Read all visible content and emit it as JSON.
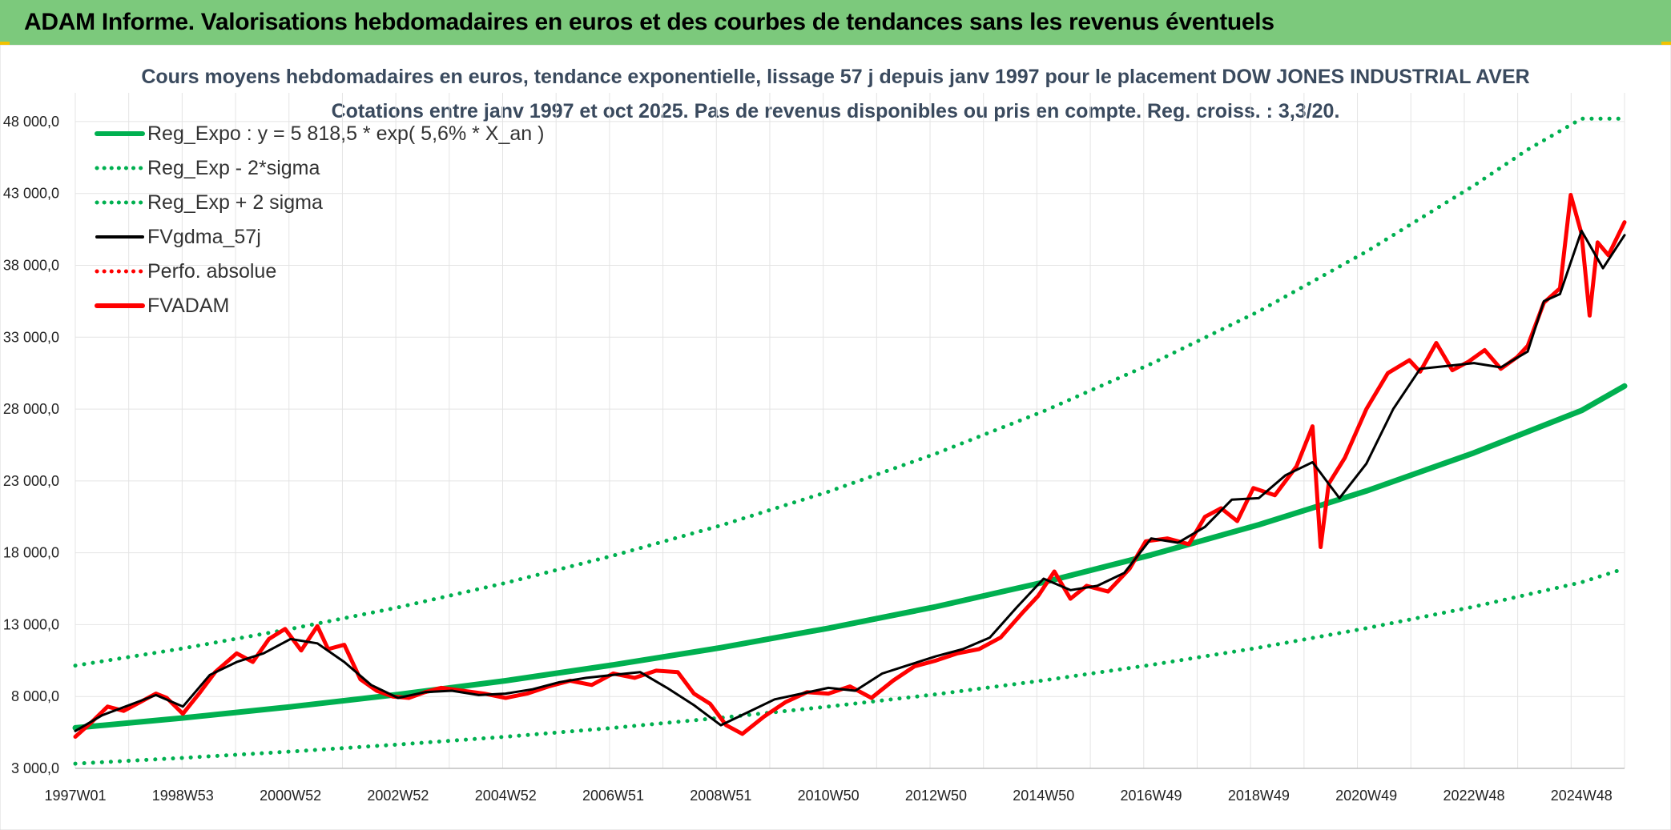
{
  "banner": {
    "title": "ADAM Informe. Valorisations hebdomadaires en euros et des courbes de tendances sans les revenus éventuels",
    "color": "#7cc97c"
  },
  "chart_data": {
    "type": "line",
    "title": "Cours moyens hebdomadaires en euros, tendance exponentielle, lissage 57 j depuis janv 1997 pour le placement DOW JONES INDUSTRIAL AVER",
    "subtitle": "Cotations entre janv 1997 et oct 2025. Pas de revenus disponibles ou pris en compte. Reg. croiss. : 3,3/20.",
    "xlabel": "",
    "ylabel": "",
    "x_ticks": [
      "1997W01",
      "1998W53",
      "2000W52",
      "2002W52",
      "2004W52",
      "2006W51",
      "2008W51",
      "2010W50",
      "2012W50",
      "2014W50",
      "2016W49",
      "2018W49",
      "2020W49",
      "2022W48",
      "2024W48"
    ],
    "x_range": [
      "1997-01",
      "2025-10"
    ],
    "ylim": [
      3000,
      50000
    ],
    "y_ticks": [
      "3 000,0",
      "8 000,0",
      "13 000,0",
      "18 000,0",
      "23 000,0",
      "28 000,0",
      "33 000,0",
      "38 000,0",
      "43 000,0",
      "48 000,0"
    ],
    "y_tick_values": [
      3000,
      8000,
      13000,
      18000,
      23000,
      28000,
      33000,
      38000,
      43000,
      48000
    ],
    "grid": true,
    "legend_position": "top-left",
    "series": [
      {
        "name": "Reg_Expo : y = 5 818,5 * exp( 5,6% *  X_an )",
        "style": "solid",
        "color": "#00b050",
        "x": [
          1997.0,
          1999.0,
          2001.0,
          2003.0,
          2005.0,
          2007.0,
          2009.0,
          2011.0,
          2013.0,
          2015.0,
          2017.0,
          2019.0,
          2021.0,
          2023.0,
          2025.0,
          2025.8
        ],
        "values": [
          5818,
          6510,
          7280,
          8140,
          9100,
          10200,
          11400,
          12750,
          14250,
          15950,
          17850,
          19950,
          22300,
          24950,
          27900,
          29600
        ]
      },
      {
        "name": "Reg_Exp - 2*sigma",
        "style": "dotted",
        "color": "#00b050",
        "x": [
          1997.0,
          1999.0,
          2001.0,
          2003.0,
          2005.0,
          2007.0,
          2009.0,
          2011.0,
          2013.0,
          2015.0,
          2017.0,
          2019.0,
          2021.0,
          2023.0,
          2025.0,
          2025.8
        ],
        "values": [
          3330,
          3730,
          4170,
          4660,
          5200,
          5820,
          6520,
          7300,
          8150,
          9120,
          10200,
          11400,
          12750,
          14250,
          15950,
          16900
        ]
      },
      {
        "name": "Reg_Exp + 2 sigma",
        "style": "dotted",
        "color": "#00b050",
        "x": [
          1997.0,
          1999.0,
          2001.0,
          2003.0,
          2005.0,
          2007.0,
          2009.0,
          2011.0,
          2013.0,
          2015.0,
          2017.0,
          2019.0,
          2021.0,
          2023.0,
          2024.0,
          2025.0,
          2025.8
        ],
        "values": [
          10150,
          11350,
          12700,
          14200,
          15900,
          17800,
          19900,
          22250,
          24900,
          27850,
          31150,
          34800,
          38950,
          43550,
          46050,
          48200,
          48200
        ]
      },
      {
        "name": "FVgdma_57j",
        "style": "solid",
        "color": "#000000",
        "x": [
          1997.0,
          1997.5,
          1998.0,
          1998.5,
          1999.0,
          1999.5,
          2000.0,
          2000.5,
          2001.0,
          2001.5,
          2002.0,
          2002.5,
          2003.0,
          2003.5,
          2004.0,
          2004.5,
          2005.0,
          2005.5,
          2006.0,
          2006.5,
          2007.0,
          2007.5,
          2008.0,
          2008.5,
          2009.0,
          2009.5,
          2010.0,
          2010.5,
          2011.0,
          2011.5,
          2012.0,
          2012.5,
          2013.0,
          2013.5,
          2014.0,
          2014.5,
          2015.0,
          2015.5,
          2016.0,
          2016.5,
          2017.0,
          2017.5,
          2018.0,
          2018.5,
          2019.0,
          2019.5,
          2020.0,
          2020.5,
          2021.0,
          2021.5,
          2022.0,
          2022.5,
          2023.0,
          2023.5,
          2024.0,
          2024.3,
          2024.6,
          2025.0,
          2025.4,
          2025.8
        ],
        "values": [
          5600,
          6700,
          7400,
          8100,
          7300,
          9500,
          10400,
          11000,
          12000,
          11700,
          10400,
          8800,
          7900,
          8300,
          8400,
          8100,
          8200,
          8500,
          9000,
          9300,
          9500,
          9700,
          8600,
          7400,
          6000,
          6900,
          7800,
          8200,
          8600,
          8400,
          9600,
          10200,
          10800,
          11300,
          12100,
          14200,
          16200,
          15400,
          15700,
          16600,
          19000,
          18700,
          19800,
          21700,
          21800,
          23400,
          24300,
          21800,
          24200,
          28000,
          30800,
          31000,
          31200,
          30900,
          32000,
          35500,
          36000,
          40400,
          37800,
          40100
        ]
      },
      {
        "name": "Perfo. absolue",
        "style": "dotted",
        "color": "#ff0000",
        "x": [],
        "values": []
      },
      {
        "name": "FVADAM",
        "style": "solid",
        "color": "#ff0000",
        "x": [
          1997.0,
          1997.3,
          1997.6,
          1997.9,
          1998.2,
          1998.5,
          1998.7,
          1999.0,
          1999.3,
          1999.6,
          2000.0,
          2000.3,
          2000.6,
          2000.9,
          2001.2,
          2001.5,
          2001.7,
          2002.0,
          2002.3,
          2002.6,
          2002.9,
          2003.2,
          2003.5,
          2003.8,
          2004.2,
          2004.6,
          2005.0,
          2005.4,
          2005.8,
          2006.2,
          2006.6,
          2007.0,
          2007.4,
          2007.8,
          2008.2,
          2008.5,
          2008.8,
          2009.1,
          2009.4,
          2009.8,
          2010.2,
          2010.6,
          2011.0,
          2011.4,
          2011.8,
          2012.2,
          2012.6,
          2013.0,
          2013.4,
          2013.8,
          2014.2,
          2014.6,
          2014.9,
          2015.2,
          2015.5,
          2015.8,
          2016.2,
          2016.6,
          2016.9,
          2017.3,
          2017.7,
          2018.0,
          2018.3,
          2018.6,
          2018.9,
          2019.3,
          2019.7,
          2020.0,
          2020.15,
          2020.3,
          2020.6,
          2021.0,
          2021.4,
          2021.8,
          2022.0,
          2022.3,
          2022.6,
          2022.9,
          2023.2,
          2023.5,
          2023.8,
          2024.0,
          2024.3,
          2024.6,
          2024.8,
          2025.0,
          2025.15,
          2025.3,
          2025.5,
          2025.8
        ],
        "values": [
          5200,
          6200,
          7300,
          7000,
          7600,
          8200,
          7900,
          6800,
          8200,
          9700,
          11000,
          10400,
          12000,
          12700,
          11200,
          12900,
          11300,
          11600,
          9200,
          8400,
          8000,
          7900,
          8300,
          8600,
          8400,
          8200,
          7900,
          8200,
          8700,
          9100,
          8800,
          9600,
          9300,
          9800,
          9700,
          8200,
          7500,
          6000,
          5400,
          6600,
          7600,
          8300,
          8200,
          8700,
          7900,
          9100,
          10100,
          10500,
          11000,
          11300,
          12100,
          13800,
          15000,
          16700,
          14800,
          15700,
          15300,
          16900,
          18800,
          19000,
          18600,
          20500,
          21100,
          20200,
          22500,
          22000,
          24000,
          26800,
          18400,
          22800,
          24600,
          28000,
          30500,
          31400,
          30600,
          32600,
          30700,
          31300,
          32100,
          30800,
          31600,
          32400,
          35400,
          36400,
          42900,
          40200,
          34500,
          39600,
          38700,
          41000
        ]
      }
    ]
  }
}
